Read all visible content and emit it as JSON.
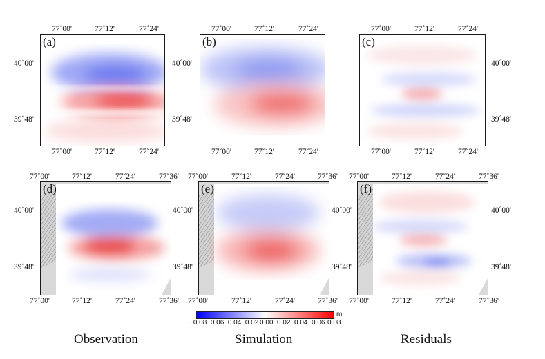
{
  "colors": {
    "negative": "#0000ff",
    "zero": "#ffffff",
    "positive": "#ff0000",
    "terrain": "#cfcfcf"
  },
  "panels_top": [
    {
      "label": "(a)",
      "type": "observation"
    },
    {
      "label": "(b)",
      "type": "simulation"
    },
    {
      "label": "(c)",
      "type": "residual"
    }
  ],
  "panels_bottom": [
    {
      "label": "(d)",
      "type": "observation"
    },
    {
      "label": "(e)",
      "type": "simulation"
    },
    {
      "label": "(f)",
      "type": "residual"
    }
  ],
  "top_ticks": {
    "lon": [
      "77˚00'",
      "77˚12'",
      "77˚24'"
    ],
    "lat": [
      "40˚00'",
      "39˚48'"
    ]
  },
  "bottom_ticks": {
    "lon": [
      "77˚00'",
      "77˚12'",
      "77˚24'",
      "77˚36'"
    ],
    "lat": [
      "40˚00'",
      "39˚48'"
    ]
  },
  "colorbar": {
    "unit": "m",
    "labels": [
      "−0.08",
      "−0.06",
      "−0.04",
      "−0.02",
      "0.00",
      "0.02",
      "0.04",
      "0.06",
      "0.08"
    ]
  },
  "column_titles": [
    "Observation",
    "Simulation",
    "Residuals"
  ]
}
